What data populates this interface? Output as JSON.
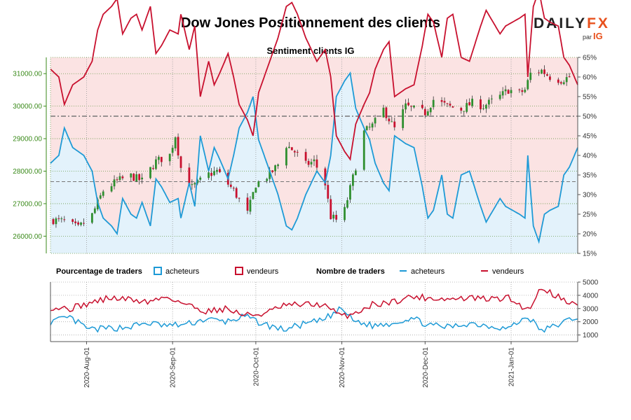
{
  "title": "Dow Jones Positionnement des clients",
  "brand": {
    "word_a": "DAILY",
    "word_b": "FX",
    "par": "par",
    "ig": "IG"
  },
  "colors": {
    "buyers": "#1e9ad6",
    "sellers": "#c8102e",
    "price_axis": "#3a8a1a",
    "buyer_fill": "#e3f2fb",
    "seller_fill": "#fbe3e3"
  },
  "chart_data": [
    {
      "type": "candlestick",
      "title": "Sentiment clients IG",
      "left_axis": {
        "ticks": [
          "26000.00",
          "27000.00",
          "28000.00",
          "29000.00",
          "30000.00",
          "31000.00"
        ],
        "values": [
          26000,
          27000,
          28000,
          29000,
          30000,
          31000
        ],
        "range": [
          25470,
          31500
        ]
      },
      "right_axis": {
        "ticks": [
          "15%",
          "20%",
          "25%",
          "30%",
          "35%",
          "40%",
          "45%",
          "50%",
          "55%",
          "60%",
          "65%"
        ],
        "values": [
          15,
          20,
          25,
          30,
          35,
          40,
          45,
          50,
          55,
          60,
          65
        ],
        "range": [
          15,
          65
        ]
      },
      "reference_lines_pct": [
        33.3,
        50
      ],
      "x_range": [
        "2020-07-19",
        "2021-01-25"
      ],
      "x_ticks": [
        "2020-Aug-01",
        "2020-Sep-01",
        "2020-Oct-01",
        "2020-Nov-01",
        "2020-Dec-01",
        "2021-Jan-01"
      ],
      "x_tick_dates": [
        "2020-08-01",
        "2020-09-01",
        "2020-10-01",
        "2020-11-01",
        "2020-12-01",
        "2021-01-01"
      ],
      "legend": {
        "pct_label": "Pourcentage de traders",
        "count_label": "Nombre de traders",
        "buyers": "acheteurs",
        "sellers": "vendeurs"
      },
      "price_anchors": [
        [
          "2020-07-20",
          26500
        ],
        [
          "2020-07-24",
          26450
        ],
        [
          "2020-07-29",
          26250
        ],
        [
          "2020-08-03",
          26650
        ],
        [
          "2020-08-07",
          27400
        ],
        [
          "2020-08-12",
          27700
        ],
        [
          "2020-08-17",
          27850
        ],
        [
          "2020-08-21",
          27700
        ],
        [
          "2020-08-26",
          28300
        ],
        [
          "2020-08-31",
          28500
        ],
        [
          "2020-09-02",
          29100
        ],
        [
          "2020-09-04",
          28100
        ],
        [
          "2020-09-08",
          27500
        ],
        [
          "2020-09-14",
          27900
        ],
        [
          "2020-09-17",
          28000
        ],
        [
          "2020-09-23",
          27400
        ],
        [
          "2020-09-28",
          26700
        ],
        [
          "2020-10-01",
          27600
        ],
        [
          "2020-10-06",
          27900
        ],
        [
          "2020-10-09",
          28200
        ],
        [
          "2020-10-12",
          28800
        ],
        [
          "2020-10-15",
          28600
        ],
        [
          "2020-10-19",
          28200
        ],
        [
          "2020-10-22",
          28300
        ],
        [
          "2020-10-26",
          27600
        ],
        [
          "2020-10-28",
          26600
        ],
        [
          "2020-10-30",
          26500
        ],
        [
          "2020-11-02",
          26800
        ],
        [
          "2020-11-05",
          27800
        ],
        [
          "2020-11-09",
          29200
        ],
        [
          "2020-11-12",
          29400
        ],
        [
          "2020-11-16",
          29900
        ],
        [
          "2020-11-20",
          29300
        ],
        [
          "2020-11-24",
          30000
        ],
        [
          "2020-11-27",
          29900
        ],
        [
          "2020-12-01",
          29800
        ],
        [
          "2020-12-04",
          30200
        ],
        [
          "2020-12-09",
          30000
        ],
        [
          "2020-12-14",
          29900
        ],
        [
          "2020-12-18",
          30100
        ],
        [
          "2020-12-22",
          30000
        ],
        [
          "2020-12-28",
          30300
        ],
        [
          "2020-12-31",
          30500
        ],
        [
          "2021-01-04",
          30400
        ],
        [
          "2021-01-06",
          30500
        ],
        [
          "2021-01-08",
          31000
        ],
        [
          "2021-01-12",
          31100
        ],
        [
          "2021-01-15",
          30900
        ],
        [
          "2021-01-19",
          30800
        ],
        [
          "2021-01-22",
          30900
        ],
        [
          "2021-01-24",
          30950
        ]
      ],
      "buyers_pct_anchors": [
        [
          "2020-07-19",
          38
        ],
        [
          "2020-07-22",
          40
        ],
        [
          "2020-07-24",
          47
        ],
        [
          "2020-07-27",
          42
        ],
        [
          "2020-07-31",
          40
        ],
        [
          "2020-08-03",
          36
        ],
        [
          "2020-08-05",
          28
        ],
        [
          "2020-08-07",
          24
        ],
        [
          "2020-08-10",
          22
        ],
        [
          "2020-08-12",
          20
        ],
        [
          "2020-08-14",
          29
        ],
        [
          "2020-08-17",
          25
        ],
        [
          "2020-08-19",
          24
        ],
        [
          "2020-08-21",
          28
        ],
        [
          "2020-08-24",
          22
        ],
        [
          "2020-08-26",
          34
        ],
        [
          "2020-08-28",
          32
        ],
        [
          "2020-08-31",
          28
        ],
        [
          "2020-09-03",
          29
        ],
        [
          "2020-09-04",
          24
        ],
        [
          "2020-09-07",
          33
        ],
        [
          "2020-09-09",
          27
        ],
        [
          "2020-09-11",
          45
        ],
        [
          "2020-09-14",
          36
        ],
        [
          "2020-09-16",
          42
        ],
        [
          "2020-09-18",
          39
        ],
        [
          "2020-09-21",
          34
        ],
        [
          "2020-09-23",
          40
        ],
        [
          "2020-09-25",
          47
        ],
        [
          "2020-09-28",
          51
        ],
        [
          "2020-09-30",
          55
        ],
        [
          "2020-10-02",
          44
        ],
        [
          "2020-10-05",
          38
        ],
        [
          "2020-10-07",
          34
        ],
        [
          "2020-10-09",
          30
        ],
        [
          "2020-10-12",
          22
        ],
        [
          "2020-10-14",
          21
        ],
        [
          "2020-10-16",
          24
        ],
        [
          "2020-10-19",
          30
        ],
        [
          "2020-10-21",
          33
        ],
        [
          "2020-10-23",
          36
        ],
        [
          "2020-10-26",
          33
        ],
        [
          "2020-10-28",
          40
        ],
        [
          "2020-10-30",
          55
        ],
        [
          "2020-11-02",
          59
        ],
        [
          "2020-11-04",
          61
        ],
        [
          "2020-11-06",
          52
        ],
        [
          "2020-11-09",
          47
        ],
        [
          "2020-11-11",
          44
        ],
        [
          "2020-11-13",
          38
        ],
        [
          "2020-11-16",
          33
        ],
        [
          "2020-11-18",
          31
        ],
        [
          "2020-11-20",
          45
        ],
        [
          "2020-11-24",
          43
        ],
        [
          "2020-11-27",
          42
        ],
        [
          "2020-11-30",
          32
        ],
        [
          "2020-12-02",
          24
        ],
        [
          "2020-12-04",
          26
        ],
        [
          "2020-12-07",
          35
        ],
        [
          "2020-12-09",
          25
        ],
        [
          "2020-12-11",
          24
        ],
        [
          "2020-12-14",
          35
        ],
        [
          "2020-12-17",
          36
        ],
        [
          "2020-12-21",
          27
        ],
        [
          "2020-12-23",
          23
        ],
        [
          "2020-12-28",
          29
        ],
        [
          "2020-12-30",
          27
        ],
        [
          "2021-01-04",
          25
        ],
        [
          "2021-01-06",
          24
        ],
        [
          "2021-01-07",
          40
        ],
        [
          "2021-01-09",
          22
        ],
        [
          "2021-01-11",
          18
        ],
        [
          "2021-01-13",
          25
        ],
        [
          "2021-01-15",
          26
        ],
        [
          "2021-01-18",
          27
        ],
        [
          "2021-01-20",
          35
        ],
        [
          "2021-01-22",
          37
        ],
        [
          "2021-01-25",
          42
        ]
      ]
    },
    {
      "type": "line",
      "title": "",
      "y_ticks": [
        "1000",
        "2000",
        "3000",
        "4000",
        "5000"
      ],
      "y_values": [
        1000,
        2000,
        3000,
        4000,
        5000
      ],
      "y_range": [
        500,
        5000
      ],
      "series": [
        {
          "name": "acheteurs",
          "anchors": [
            [
              "2020-07-19",
              2000
            ],
            [
              "2020-07-26",
              2300
            ],
            [
              "2020-08-02",
              1400
            ],
            [
              "2020-08-09",
              1500
            ],
            [
              "2020-08-16",
              1600
            ],
            [
              "2020-08-23",
              1900
            ],
            [
              "2020-08-30",
              1700
            ],
            [
              "2020-09-06",
              1800
            ],
            [
              "2020-09-13",
              2200
            ],
            [
              "2020-09-20",
              2000
            ],
            [
              "2020-09-27",
              2400
            ],
            [
              "2020-10-04",
              1800
            ],
            [
              "2020-10-11",
              1400
            ],
            [
              "2020-10-18",
              1800
            ],
            [
              "2020-10-25",
              2100
            ],
            [
              "2020-11-01",
              3000
            ],
            [
              "2020-11-05",
              2100
            ],
            [
              "2020-11-12",
              1700
            ],
            [
              "2020-11-19",
              1900
            ],
            [
              "2020-11-26",
              2300
            ],
            [
              "2020-12-03",
              1700
            ],
            [
              "2020-12-10",
              1600
            ],
            [
              "2020-12-17",
              1900
            ],
            [
              "2020-12-24",
              1700
            ],
            [
              "2020-12-31",
              1500
            ],
            [
              "2021-01-07",
              2400
            ],
            [
              "2021-01-12",
              1300
            ],
            [
              "2021-01-18",
              1800
            ],
            [
              "2021-01-25",
              2400
            ]
          ]
        },
        {
          "name": "vendeurs",
          "anchors": [
            [
              "2020-07-19",
              3100
            ],
            [
              "2020-07-26",
              3000
            ],
            [
              "2020-08-02",
              3400
            ],
            [
              "2020-08-09",
              3800
            ],
            [
              "2020-08-16",
              3700
            ],
            [
              "2020-08-23",
              3500
            ],
            [
              "2020-08-30",
              3900
            ],
            [
              "2020-09-06",
              3300
            ],
            [
              "2020-09-13",
              2800
            ],
            [
              "2020-09-20",
              3000
            ],
            [
              "2020-09-27",
              2500
            ],
            [
              "2020-10-04",
              2600
            ],
            [
              "2020-10-11",
              3200
            ],
            [
              "2020-10-18",
              3300
            ],
            [
              "2020-10-25",
              3300
            ],
            [
              "2020-11-01",
              2400
            ],
            [
              "2020-11-05",
              2600
            ],
            [
              "2020-11-12",
              3300
            ],
            [
              "2020-11-19",
              3500
            ],
            [
              "2020-11-26",
              3900
            ],
            [
              "2020-12-03",
              3800
            ],
            [
              "2020-12-10",
              3700
            ],
            [
              "2020-12-17",
              3800
            ],
            [
              "2020-12-24",
              3700
            ],
            [
              "2020-12-31",
              3800
            ],
            [
              "2021-01-07",
              2900
            ],
            [
              "2021-01-12",
              4600
            ],
            [
              "2021-01-18",
              3900
            ],
            [
              "2021-01-25",
              3200
            ]
          ]
        }
      ]
    }
  ]
}
